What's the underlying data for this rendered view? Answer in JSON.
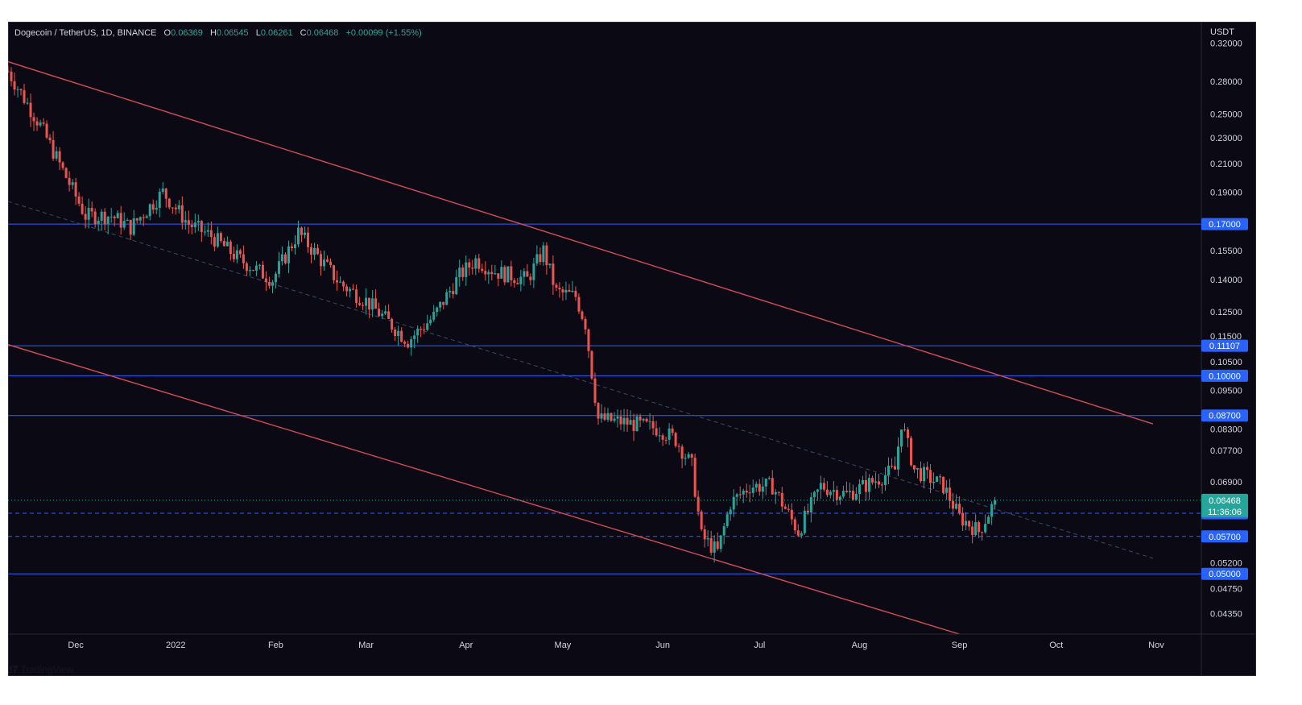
{
  "header": {
    "symbol": "Dogecoin / TetherUS, 1D, BINANCE",
    "o_label": "O",
    "o_value": "0.06369",
    "h_label": "H",
    "h_value": "0.06545",
    "l_label": "L",
    "l_value": "0.06261",
    "c_label": "C",
    "c_value": "0.06468",
    "change": "+0.00099 (+1.55%)"
  },
  "footer": {
    "brand": "TradingView"
  },
  "colors": {
    "background": "#0b0a14",
    "up": "#26a69a",
    "down": "#ef5350",
    "horizontal_line": "#2962ff",
    "channel_line": "#d14b5a",
    "midline": "#3a4a66",
    "price_label_bg": "#2962ff",
    "last_price_bg": "#26a69a"
  },
  "chart_data": {
    "type": "candlestick",
    "title": "Dogecoin / TetherUS, 1D, BINANCE",
    "currency_label": "USDT",
    "y_scale": "log",
    "ylim": [
      0.0405,
      0.345
    ],
    "y_ticks": [
      "0.32000",
      "0.28000",
      "0.25000",
      "0.23000",
      "0.21000",
      "0.19000",
      "0.15500",
      "0.14000",
      "0.12500",
      "0.11500",
      "0.10500",
      "0.09500",
      "0.08300",
      "0.07700",
      "0.06900",
      "0.05200",
      "0.04750",
      "0.04350"
    ],
    "x_ticks": [
      "Dec",
      "2022",
      "Feb",
      "Mar",
      "Apr",
      "May",
      "Jun",
      "Jul",
      "Aug",
      "Sep",
      "Oct",
      "Nov"
    ],
    "x_tick_dates": [
      "2021-12-01",
      "2022-01-01",
      "2022-02-01",
      "2022-03-01",
      "2022-04-01",
      "2022-05-01",
      "2022-06-01",
      "2022-07-01",
      "2022-08-01",
      "2022-09-01",
      "2022-10-01",
      "2022-11-01"
    ],
    "x_range": [
      "2021-11-10",
      "2022-11-15"
    ],
    "horizontal_levels": [
      {
        "value": "0.17000",
        "style": "solid"
      },
      {
        "value": "0.11107",
        "style": "solid"
      },
      {
        "value": "0.10000",
        "style": "solid"
      },
      {
        "value": "0.08700",
        "style": "solid"
      },
      {
        "value": "0.06181",
        "style": "dashed"
      },
      {
        "value": "0.05700",
        "style": "dashed"
      },
      {
        "value": "0.05000",
        "style": "solid"
      }
    ],
    "last_price": {
      "value": "0.06468",
      "countdown": "11:36:06"
    },
    "trend_lines": [
      {
        "name": "upper channel",
        "from": {
          "date": "2021-11-10",
          "price": 0.3
        },
        "to": {
          "date": "2022-10-31",
          "price": 0.0845
        }
      },
      {
        "name": "lower channel",
        "from": {
          "date": "2021-11-10",
          "price": 0.1115
        },
        "to": {
          "date": "2022-09-01",
          "price": 0.0405
        }
      },
      {
        "name": "mid line",
        "dashed": true,
        "from": {
          "date": "2021-11-10",
          "price": 0.184
        },
        "to": {
          "date": "2022-10-31",
          "price": 0.0528
        }
      }
    ],
    "anchors": [
      [
        "2021-11-10",
        0.29
      ],
      [
        "2021-11-20",
        0.24
      ],
      [
        "2021-12-04",
        0.175
      ],
      [
        "2021-12-12",
        0.175
      ],
      [
        "2021-12-18",
        0.168
      ],
      [
        "2021-12-28",
        0.19
      ],
      [
        "2022-01-05",
        0.17
      ],
      [
        "2022-01-12",
        0.163
      ],
      [
        "2022-01-21",
        0.15
      ],
      [
        "2022-01-31",
        0.14
      ],
      [
        "2022-02-08",
        0.165
      ],
      [
        "2022-02-14",
        0.152
      ],
      [
        "2022-02-21",
        0.138
      ],
      [
        "2022-03-01",
        0.13
      ],
      [
        "2022-03-07",
        0.122
      ],
      [
        "2022-03-14",
        0.113
      ],
      [
        "2022-03-22",
        0.123
      ],
      [
        "2022-03-30",
        0.142
      ],
      [
        "2022-04-04",
        0.15
      ],
      [
        "2022-04-10",
        0.144
      ],
      [
        "2022-04-20",
        0.14
      ],
      [
        "2022-04-25",
        0.155
      ],
      [
        "2022-04-29",
        0.134
      ],
      [
        "2022-05-05",
        0.132
      ],
      [
        "2022-05-08",
        0.12
      ],
      [
        "2022-05-10",
        0.101
      ],
      [
        "2022-05-12",
        0.086
      ],
      [
        "2022-05-20",
        0.085
      ],
      [
        "2022-05-31",
        0.083
      ],
      [
        "2022-06-05",
        0.08
      ],
      [
        "2022-06-10",
        0.073
      ],
      [
        "2022-06-13",
        0.057
      ],
      [
        "2022-06-18",
        0.054
      ],
      [
        "2022-06-22",
        0.064
      ],
      [
        "2022-06-28",
        0.068
      ],
      [
        "2022-07-05",
        0.068
      ],
      [
        "2022-07-13",
        0.058
      ],
      [
        "2022-07-20",
        0.068
      ],
      [
        "2022-07-28",
        0.066
      ],
      [
        "2022-08-05",
        0.069
      ],
      [
        "2022-08-12",
        0.072
      ],
      [
        "2022-08-14",
        0.085
      ],
      [
        "2022-08-18",
        0.072
      ],
      [
        "2022-08-27",
        0.068
      ],
      [
        "2022-09-01",
        0.061
      ],
      [
        "2022-09-07",
        0.058
      ],
      [
        "2022-09-12",
        0.0645
      ]
    ],
    "last_candle": {
      "date": "2022-09-12",
      "open": 0.06369,
      "high": 0.06545,
      "low": 0.06261,
      "close": 0.06468
    }
  }
}
